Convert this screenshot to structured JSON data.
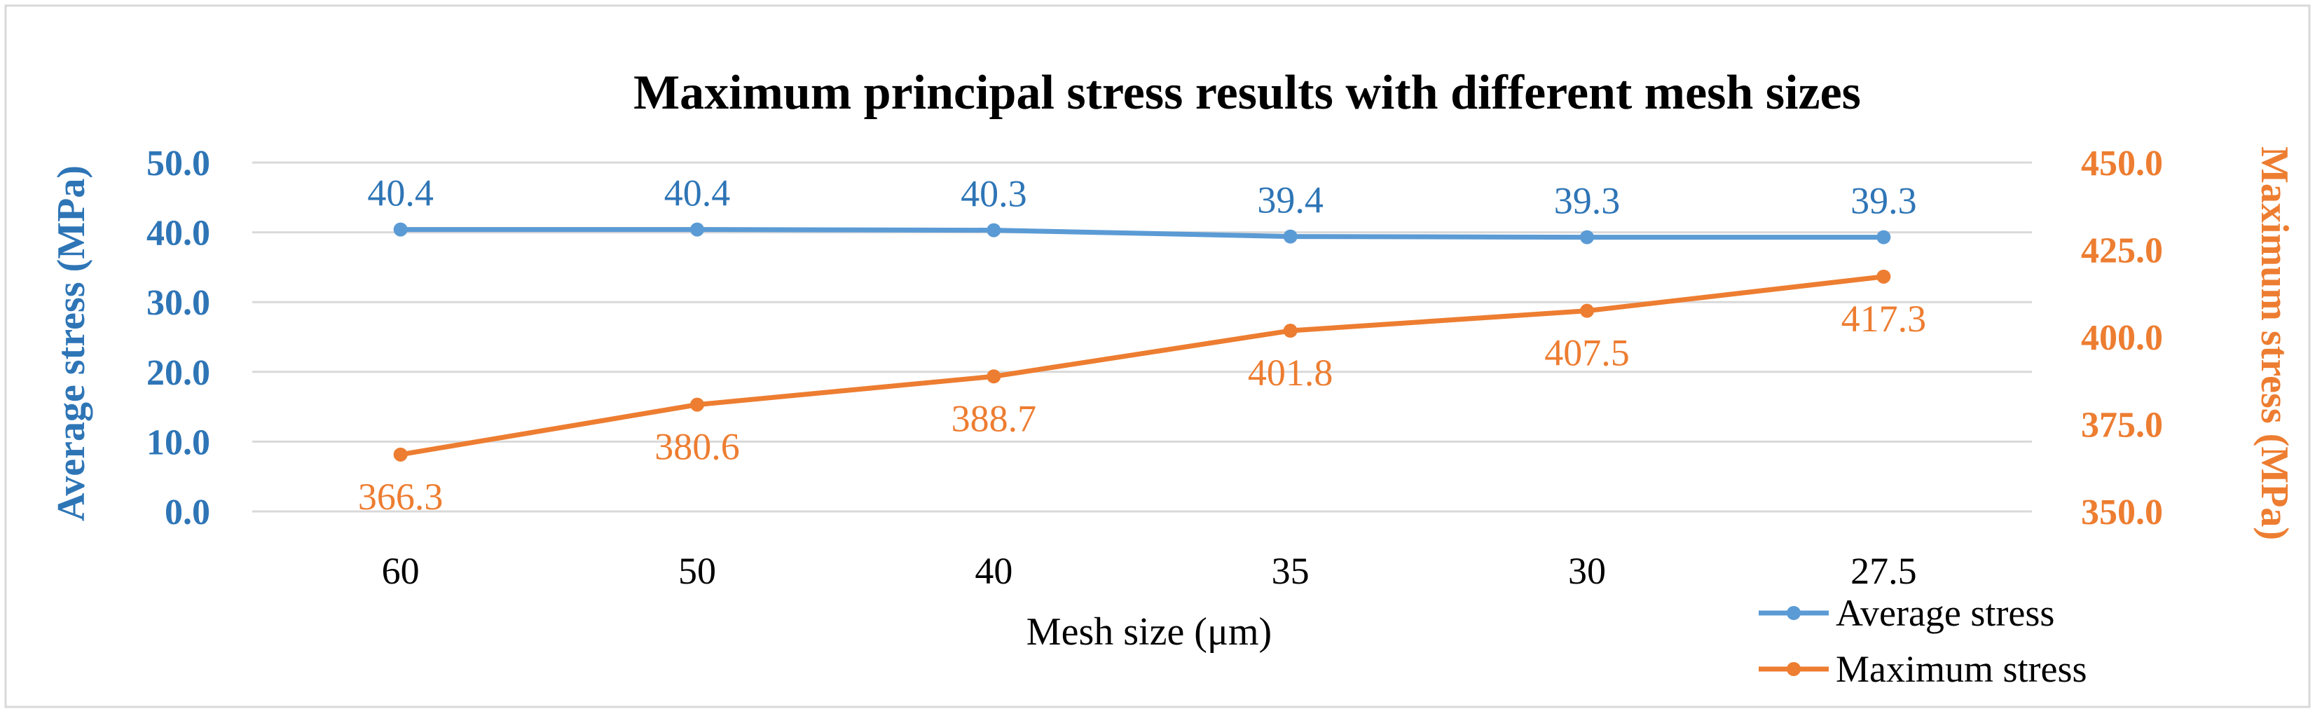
{
  "chart_data": {
    "type": "line",
    "title": "Maximum principal stress results with different mesh sizes",
    "xlabel": "Mesh size (μm)",
    "ylabel_left": "Average stress (MPa)",
    "ylabel_right": "Maximum stress (MPa)",
    "categories": [
      "60",
      "50",
      "40",
      "35",
      "30",
      "27.5"
    ],
    "y_left": {
      "min": 0,
      "max": 50,
      "step": 10,
      "ticks": [
        "0.0",
        "10.0",
        "20.0",
        "30.0",
        "40.0",
        "50.0"
      ]
    },
    "y_right": {
      "min": 350,
      "max": 450,
      "step": 25,
      "ticks": [
        "350.0",
        "375.0",
        "400.0",
        "425.0",
        "450.0"
      ]
    },
    "grid": true,
    "legend_position": "bottom-right",
    "series": [
      {
        "name": "Average stress",
        "axis": "left",
        "color": "#5b9bd5",
        "label_color": "#2e75b6",
        "values": [
          40.4,
          40.4,
          40.3,
          39.4,
          39.3,
          39.3
        ],
        "labels": [
          "40.4",
          "40.4",
          "40.3",
          "39.4",
          "39.3",
          "39.3"
        ]
      },
      {
        "name": "Maximum stress",
        "axis": "right",
        "color": "#ed7d31",
        "label_color": "#ed7d31",
        "values": [
          366.3,
          380.6,
          388.7,
          401.8,
          407.5,
          417.3
        ],
        "labels": [
          "366.3",
          "380.6",
          "388.7",
          "401.8",
          "407.5",
          "417.3"
        ]
      }
    ]
  }
}
